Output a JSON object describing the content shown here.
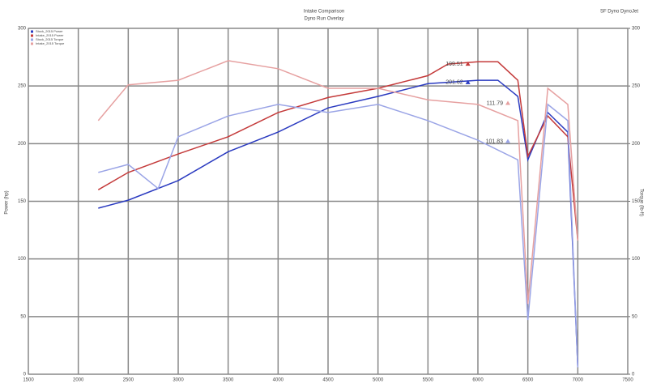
{
  "chart_data": {
    "type": "line",
    "title": "Intake Comparison",
    "subtitle": "Dyno Run Overlay",
    "corner_note": "SF Dyno DynoJet",
    "ylabel": "Power (hp)",
    "y2label": "Torque (lb-ft)",
    "xlim": [
      1500,
      7500
    ],
    "xticks": [
      1500,
      2000,
      2500,
      3000,
      3500,
      4000,
      4500,
      5000,
      5500,
      6000,
      6500,
      7000,
      7500
    ],
    "ylim": [
      0,
      300
    ],
    "yticks": [
      0,
      50,
      100,
      150,
      200,
      250,
      300
    ],
    "y2lim": [
      0,
      300
    ],
    "y2ticks": [
      0,
      50,
      100,
      150,
      200,
      250,
      300
    ],
    "grid": true,
    "series": [
      {
        "name": "Stock_2015 Power",
        "color": "#2a3ac0",
        "x": [
          2200,
          2500,
          3000,
          3500,
          4000,
          4500,
          5000,
          5500,
          6000,
          6200,
          6400,
          6500,
          6700,
          6900,
          7000
        ],
        "values": [
          144,
          151,
          168,
          193,
          210,
          231,
          241,
          252,
          255,
          255,
          241,
          186,
          227,
          210,
          6
        ]
      },
      {
        "name": "Intake_2015 Power",
        "color": "#c43a3a",
        "x": [
          2200,
          2500,
          3000,
          3500,
          4000,
          4500,
          5000,
          5500,
          5700,
          6000,
          6200,
          6400,
          6500,
          6700,
          6900,
          7000
        ],
        "values": [
          160,
          175,
          191,
          206,
          227,
          240,
          248,
          259,
          269,
          271,
          271,
          255,
          189,
          224,
          206,
          116
        ]
      },
      {
        "name": "Stock_2015 Torque",
        "color": "#9aa4e6",
        "axis": "y2",
        "x": [
          2200,
          2500,
          2800,
          3000,
          3500,
          4000,
          4500,
          5000,
          5500,
          6000,
          6400,
          6500,
          6700,
          6900,
          7000
        ],
        "values": [
          175,
          182,
          161,
          206,
          224,
          234,
          227,
          234,
          220,
          203,
          186,
          47,
          234,
          220,
          6
        ]
      },
      {
        "name": "Intake_2015 Torque",
        "color": "#e6a0a0",
        "axis": "y2",
        "x": [
          2200,
          2500,
          3000,
          3500,
          4000,
          4500,
          5000,
          5500,
          6000,
          6400,
          6500,
          6700,
          6900,
          7000
        ],
        "values": [
          220,
          251,
          255,
          272,
          265,
          248,
          248,
          238,
          234,
          220,
          61,
          248,
          234,
          116
        ]
      }
    ],
    "annotations": [
      {
        "text": "199.51",
        "x": 5900,
        "y": 269,
        "color": "#c43a3a"
      },
      {
        "text": "201.62",
        "x": 5900,
        "y": 253,
        "color": "#2a3ac0"
      },
      {
        "text": "111.79",
        "x": 6300,
        "y": 235,
        "color": "#e6a0a0"
      },
      {
        "text": "101.83",
        "x": 6300,
        "y": 202,
        "color": "#9aa4e6"
      }
    ]
  }
}
